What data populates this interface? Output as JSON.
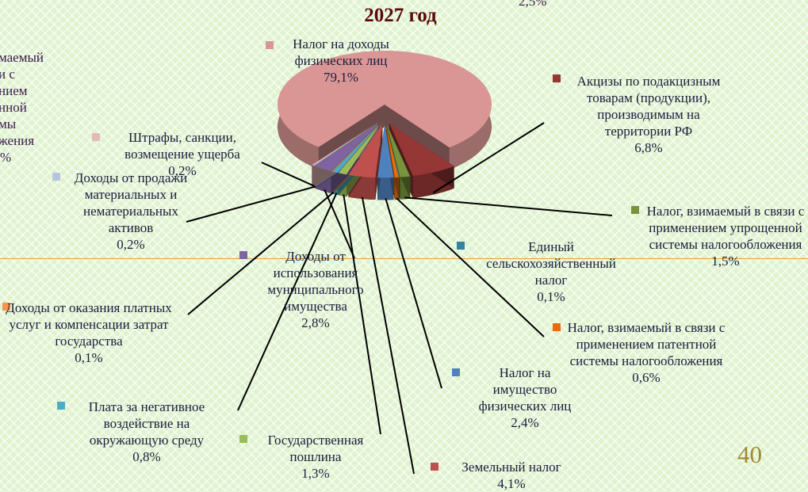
{
  "page_number": "40",
  "clipped_texts": {
    "top": "2,5%",
    "left": [
      "маемый",
      "и с",
      "нием",
      "нной",
      "мы",
      "жения",
      "%"
    ]
  },
  "chart_data": {
    "type": "pie",
    "title": "2027 год",
    "categories": [
      "Налог на доходы физических лиц",
      "Акцизы по подакцизным товарам (продукции), производимым на территории РФ",
      "Налог, взимаемый в связи с применением упрощенной системы налогообложения",
      "Единый сельскохозяйственный налог",
      "Налог, взимаемый в связи с применением патентной системы налогообложения",
      "Налог на имущество физических лиц",
      "Земельный налог",
      "Государственная пошлина",
      "Плата за негативное воздействие на окружающую среду",
      "Доходы от оказания платных услуг и компенсации затрат государства",
      "Доходы от использования муниципального имущества",
      "Доходы от продажи материальных и нематериальных активов",
      "Штрафы, санкции, возмещение ущерба"
    ],
    "values": [
      79.1,
      6.8,
      1.5,
      0.1,
      0.6,
      2.4,
      4.1,
      1.3,
      0.8,
      0.1,
      2.8,
      0.2,
      0.2
    ],
    "value_labels": [
      "79,1%",
      "6,8%",
      "1,5%",
      "0,1%",
      "0,6%",
      "2,4%",
      "4,1%",
      "1,3%",
      "0,8%",
      "0,1%",
      "2,8%",
      "0,2%",
      "0,2%"
    ],
    "colors": [
      "#d99694",
      "#953735",
      "#77933c",
      "#31859c",
      "#e46c0a",
      "#4f81bd",
      "#c0504d",
      "#9bbb59",
      "#4bacc6",
      "#f79646",
      "#8064a2",
      "#b7c4e0",
      "#e6b9b8"
    ]
  }
}
